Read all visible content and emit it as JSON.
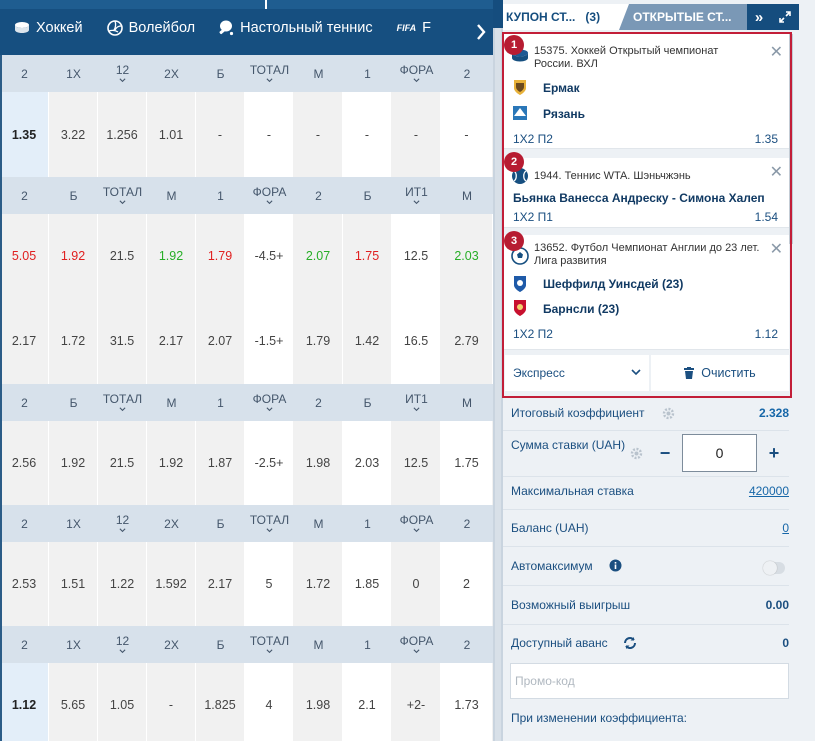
{
  "sports_nav": {
    "items": [
      {
        "label": "Хоккей",
        "icon": "hockey-puck-icon"
      },
      {
        "label": "Волейбол",
        "icon": "volleyball-icon"
      },
      {
        "label": "Настольный теннис",
        "icon": "table-tennis-icon"
      },
      {
        "label": "FIFA",
        "icon": "fifa-icon"
      },
      {
        "label": "F",
        "icon": ""
      }
    ]
  },
  "odds": {
    "blocks": [
      {
        "headers": [
          "2",
          "1Х",
          "12",
          "2Х",
          "Б",
          "ТОТАЛ",
          "М",
          "1",
          "ФОРА",
          "2"
        ],
        "rows": [
          [
            "1.35",
            "3.22",
            "1.256",
            "1.01",
            "-",
            "-",
            "-",
            "-",
            "-",
            "-"
          ]
        ]
      },
      {
        "headers": [
          "2",
          "Б",
          "ТОТАЛ",
          "М",
          "1",
          "ФОРА",
          "2",
          "Б",
          "ИТ1",
          "М"
        ],
        "rows": [
          [
            "5.05",
            "1.92",
            "21.5",
            "1.92",
            "1.79",
            "-4.5+",
            "2.07",
            "1.75",
            "12.5",
            "2.03"
          ],
          [
            "2.17",
            "1.72",
            "31.5",
            "2.17",
            "2.07",
            "-1.5+",
            "1.79",
            "1.42",
            "16.5",
            "2.79"
          ]
        ]
      },
      {
        "headers": [
          "2",
          "Б",
          "ТОТАЛ",
          "М",
          "1",
          "ФОРА",
          "2",
          "Б",
          "ИТ1",
          "М"
        ],
        "rows": [
          [
            "2.56",
            "1.92",
            "21.5",
            "1.92",
            "1.87",
            "-2.5+",
            "1.98",
            "2.03",
            "12.5",
            "1.75"
          ]
        ]
      },
      {
        "headers": [
          "2",
          "1Х",
          "12",
          "2Х",
          "Б",
          "ТОТАЛ",
          "М",
          "1",
          "ФОРА",
          "2"
        ],
        "rows": [
          [
            "2.53",
            "1.51",
            "1.22",
            "1.592",
            "2.17",
            "5",
            "1.72",
            "1.85",
            "0",
            "2"
          ]
        ]
      },
      {
        "headers": [
          "2",
          "1Х",
          "12",
          "2Х",
          "Б",
          "ТОТАЛ",
          "М",
          "1",
          "ФОРА",
          "2"
        ],
        "rows": [
          [
            "1.12",
            "5.65",
            "1.05",
            "-",
            "1.825",
            "4",
            "1.98",
            "2.1",
            "+2-",
            "1.73"
          ]
        ]
      }
    ]
  },
  "coupon": {
    "tab_coupon": "КУПОН СТ...",
    "tab_count": "(3)",
    "tab_open": "ОТКРЫТЫЕ СТ...",
    "bets": [
      {
        "badge": "1",
        "event": "15375. Хоккей Открытый чемпионат России. ВХЛ",
        "team1": "Ермак",
        "team2": "Рязань",
        "market": "1Х2 П2",
        "odd": "1.35"
      },
      {
        "badge": "2",
        "event": "1944. Теннис WTA. Шэньчжэнь",
        "team1": "Бьянка Ванесса Андреску - Симона Халеп",
        "team2": "",
        "market": "1Х2 П1",
        "odd": "1.54"
      },
      {
        "badge": "3",
        "event": "13652. Футбол Чемпионат Англии до 23 лет. Лига развития",
        "team1": "Шеффилд Уинсдей (23)",
        "team2": "Барнсли (23)",
        "market": "1Х2 П2",
        "odd": "1.12"
      }
    ],
    "bet_type": "Экспресс",
    "clear_label": "Очистить",
    "total_coef_label": "Итоговый коэффициент",
    "total_coef": "2.328",
    "stake_label": "Сумма ставки (UAH)",
    "stake_value": "0",
    "max_stake_label": "Максимальная ставка",
    "max_stake": "420000",
    "balance_label": "Баланс (UAH)",
    "balance": "0",
    "automax_label": "Автомаксимум",
    "possible_win_label": "Возможный выигрыш",
    "possible_win": "0.00",
    "advance_label": "Доступный аванс",
    "advance": "0",
    "promo_placeholder": "Промо-код",
    "on_change_label": "При изменении коэффициента:"
  },
  "colors": {
    "brand": "#164f80",
    "accent_red": "#c21e38",
    "odds_up": "#27ae27",
    "odds_down": "#e02020"
  }
}
